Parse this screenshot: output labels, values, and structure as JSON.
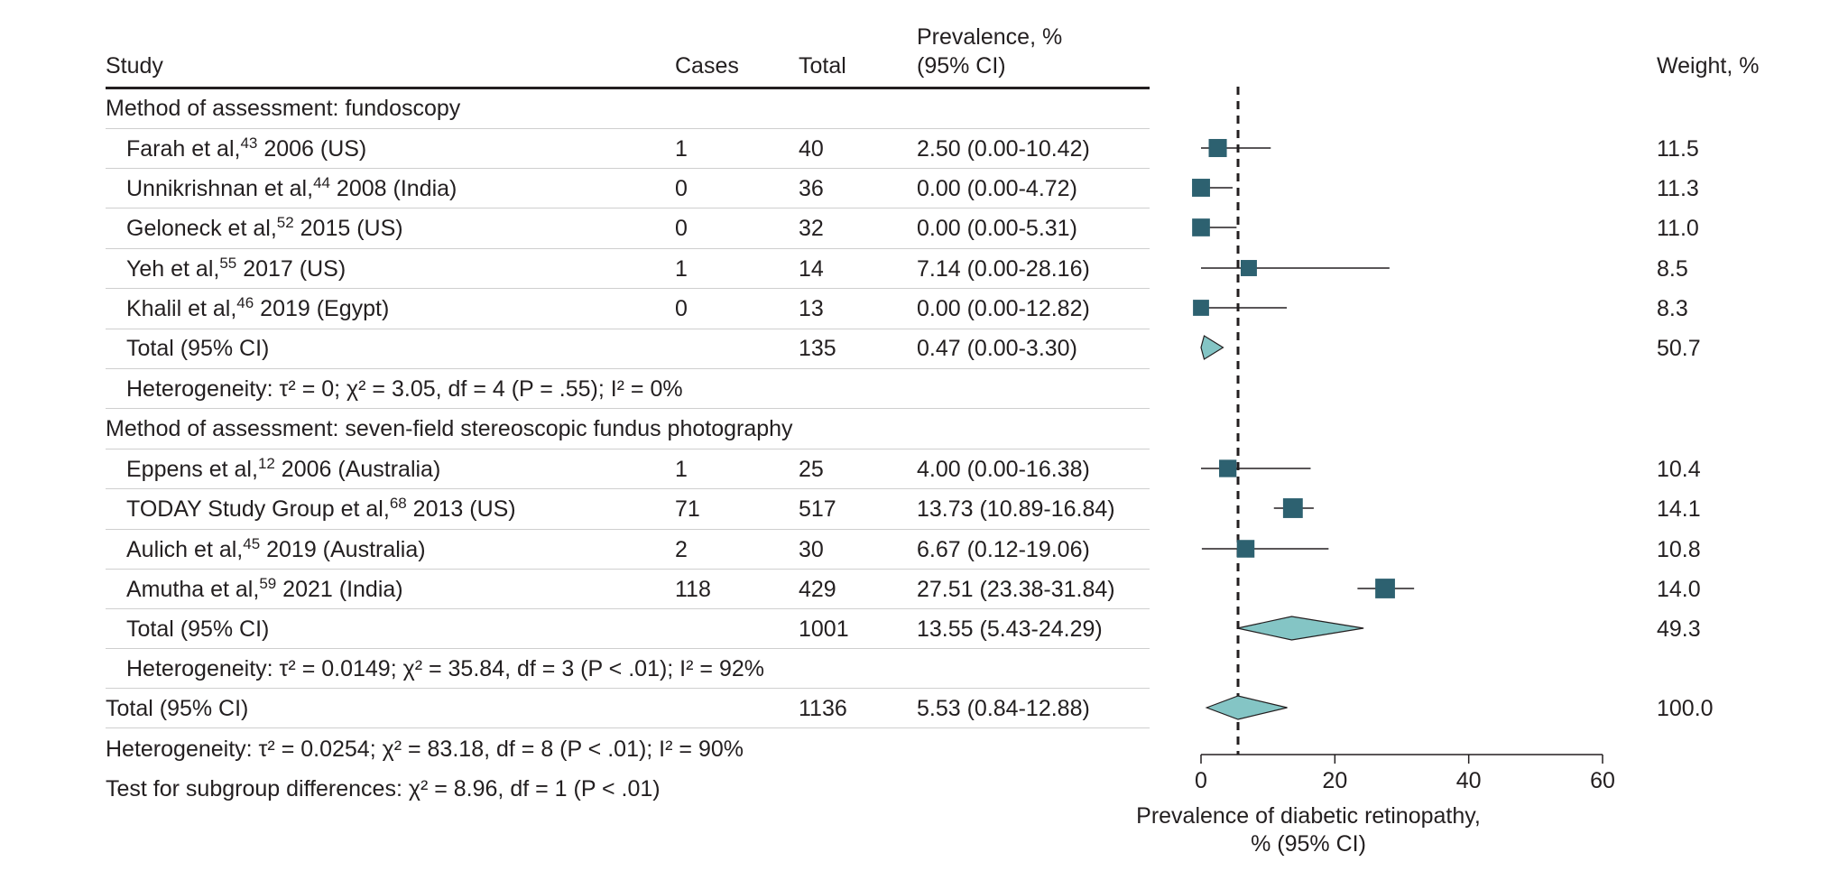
{
  "table": {
    "headers": {
      "study": "Study",
      "cases": "Cases",
      "total": "Total",
      "prevalence_line1": "Prevalence, %",
      "prevalence_line2": "(95% CI)",
      "weight": "Weight, %"
    },
    "groups": [
      {
        "title": "Method of assessment: fundoscopy",
        "studies": [
          {
            "author": "Farah et al,",
            "ref": "43",
            "rest": " 2006 (US)",
            "cases": "1",
            "total": "40",
            "prevalence": "2.50 (0.00-10.42)",
            "weight": "11.5"
          },
          {
            "author": "Unnikrishnan et al,",
            "ref": "44",
            "rest": " 2008 (India)",
            "cases": "0",
            "total": "36",
            "prevalence": "0.00 (0.00-4.72)",
            "weight": "11.3"
          },
          {
            "author": "Geloneck et al,",
            "ref": "52",
            "rest": " 2015 (US)",
            "cases": "0",
            "total": "32",
            "prevalence": "0.00 (0.00-5.31)",
            "weight": "11.0"
          },
          {
            "author": "Yeh et al,",
            "ref": "55",
            "rest": " 2017 (US)",
            "cases": "1",
            "total": "14",
            "prevalence": "7.14 (0.00-28.16)",
            "weight": "8.5"
          },
          {
            "author": "Khalil et al,",
            "ref": "46",
            "rest": " 2019 (Egypt)",
            "cases": "0",
            "total": "13",
            "prevalence": "0.00 (0.00-12.82)",
            "weight": "8.3"
          }
        ],
        "total": {
          "label": "Total (95% CI)",
          "total": "135",
          "prevalence": "0.47 (0.00-3.30)",
          "weight": "50.7"
        },
        "heterogeneity": "Heterogeneity: τ² = 0; χ² = 3.05, df = 4 (P = .55); I² = 0%"
      },
      {
        "title": "Method of assessment: seven-field stereoscopic fundus photography",
        "studies": [
          {
            "author": "Eppens et al,",
            "ref": "12",
            "rest": " 2006 (Australia)",
            "cases": "1",
            "total": "25",
            "prevalence": "4.00 (0.00-16.38)",
            "weight": "10.4"
          },
          {
            "author": "TODAY Study Group et al,",
            "ref": "68",
            "rest": " 2013 (US)",
            "cases": "71",
            "total": "517",
            "prevalence": "13.73 (10.89-16.84)",
            "weight": "14.1"
          },
          {
            "author": "Aulich et al,",
            "ref": "45",
            "rest": " 2019 (Australia)",
            "cases": "2",
            "total": "30",
            "prevalence": "6.67 (0.12-19.06)",
            "weight": "10.8"
          },
          {
            "author": "Amutha et al,",
            "ref": "59",
            "rest": " 2021 (India)",
            "cases": "118",
            "total": "429",
            "prevalence": "27.51 (23.38-31.84)",
            "weight": "14.0"
          }
        ],
        "total": {
          "label": "Total (95% CI)",
          "total": "1001",
          "prevalence": "13.55 (5.43-24.29)",
          "weight": "49.3"
        },
        "heterogeneity": "Heterogeneity: τ² = 0.0149; χ² = 35.84, df = 3 (P < .01); I² = 92%"
      }
    ],
    "overall": {
      "label": "Total (95% CI)",
      "total": "1136",
      "prevalence": "5.53 (0.84-12.88)",
      "weight": "100.0"
    },
    "overall_heterogeneity": "Heterogeneity: τ² = 0.0254; χ² = 83.18, df = 8 (P < .01); I² = 90%",
    "subgroup_test": "Test for subgroup differences: χ² = 8.96, df = 1 (P < .01)"
  },
  "chart_data": {
    "type": "forest",
    "xlabel_line1": "Prevalence of diabetic retinopathy,",
    "xlabel_line2": "% (95% CI)",
    "xlim": [
      0,
      60
    ],
    "xticks": [
      "0",
      "20",
      "40",
      "60"
    ],
    "reference_line": 5.53,
    "colors": {
      "square": "#2d6170",
      "diamond_fill": "#84c5c5",
      "diamond_stroke": "#231f20",
      "line": "#231f20"
    },
    "points": [
      {
        "label": "Farah et al, 2006 (US)",
        "est": 2.5,
        "lo": 0.0,
        "hi": 10.42,
        "weight": 11.5,
        "kind": "study"
      },
      {
        "label": "Unnikrishnan et al, 2008 (India)",
        "est": 0.0,
        "lo": 0.0,
        "hi": 4.72,
        "weight": 11.3,
        "kind": "study"
      },
      {
        "label": "Geloneck et al, 2015 (US)",
        "est": 0.0,
        "lo": 0.0,
        "hi": 5.31,
        "weight": 11.0,
        "kind": "study"
      },
      {
        "label": "Yeh et al, 2017 (US)",
        "est": 7.14,
        "lo": 0.0,
        "hi": 28.16,
        "weight": 8.5,
        "kind": "study"
      },
      {
        "label": "Khalil et al, 2019 (Egypt)",
        "est": 0.0,
        "lo": 0.0,
        "hi": 12.82,
        "weight": 8.3,
        "kind": "study"
      },
      {
        "label": "Fundoscopy total",
        "est": 0.47,
        "lo": 0.0,
        "hi": 3.3,
        "weight": 50.7,
        "kind": "pooled"
      },
      {
        "label": "Eppens et al, 2006 (Australia)",
        "est": 4.0,
        "lo": 0.0,
        "hi": 16.38,
        "weight": 10.4,
        "kind": "study"
      },
      {
        "label": "TODAY Study Group et al, 2013 (US)",
        "est": 13.73,
        "lo": 10.89,
        "hi": 16.84,
        "weight": 14.1,
        "kind": "study"
      },
      {
        "label": "Aulich et al, 2019 (Australia)",
        "est": 6.67,
        "lo": 0.12,
        "hi": 19.06,
        "weight": 10.8,
        "kind": "study"
      },
      {
        "label": "Amutha et al, 2021 (India)",
        "est": 27.51,
        "lo": 23.38,
        "hi": 31.84,
        "weight": 14.0,
        "kind": "study"
      },
      {
        "label": "Fundus photography total",
        "est": 13.55,
        "lo": 5.43,
        "hi": 24.29,
        "weight": 49.3,
        "kind": "pooled"
      },
      {
        "label": "Overall total",
        "est": 5.53,
        "lo": 0.84,
        "hi": 12.88,
        "weight": 100.0,
        "kind": "pooled"
      }
    ]
  }
}
